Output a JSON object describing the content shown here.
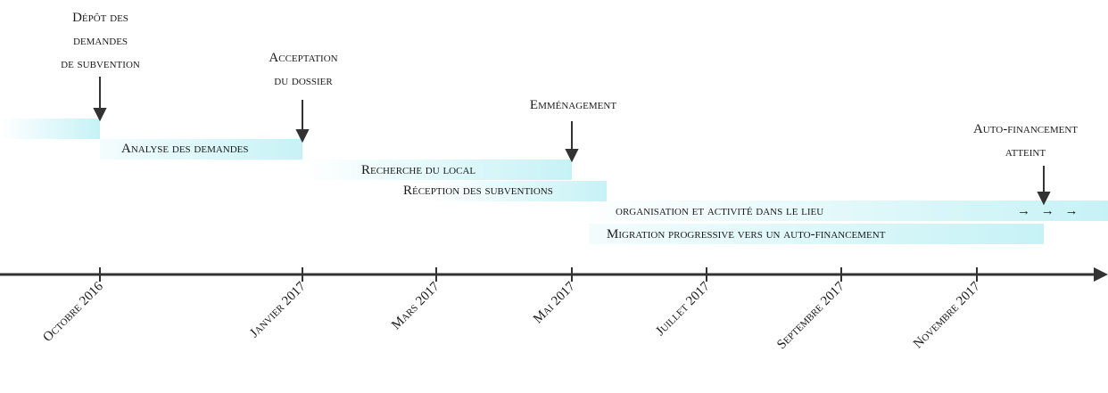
{
  "milestones": [
    {
      "lines": [
        "Dépôt des",
        "demandes",
        "de subvention"
      ]
    },
    {
      "lines": [
        "Acceptation",
        "du dossier"
      ]
    },
    {
      "lines": [
        "Emménagement"
      ]
    },
    {
      "lines": [
        "Auto-financement",
        "atteint"
      ]
    }
  ],
  "phases": [
    {
      "label": "Analyse des demandes"
    },
    {
      "label": "Recherche du local"
    },
    {
      "label": "Réception des subventions"
    },
    {
      "label": "organisation et activité dans le lieu",
      "continuation": "→ → →"
    },
    {
      "label": "Migration progressive vers un auto-financement"
    }
  ],
  "axis": {
    "ticks": [
      "Octobre 2016",
      "Janvier 2017",
      "Mars 2017",
      "Mai 2017",
      "Juillet 2017",
      "Septembre 2017",
      "Novembre 2017"
    ]
  },
  "colors": {
    "bar": "#c6f2f6",
    "axis": "#333333"
  }
}
